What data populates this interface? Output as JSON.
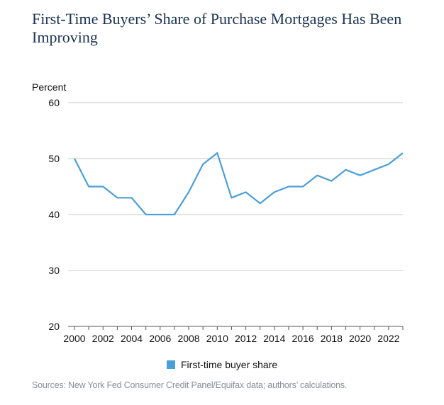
{
  "chart_data": {
    "type": "line",
    "title": "First-Time Buyers’ Share of Purchase Mortgages Has Been Improving",
    "ylabel": "Percent",
    "xlabel": "",
    "ylim": [
      20,
      60
    ],
    "yticks": [
      20,
      30,
      40,
      50,
      60
    ],
    "xlim": [
      2000,
      2023
    ],
    "xticks": [
      "2000",
      "2002",
      "2004",
      "2006",
      "2008",
      "2010",
      "2012",
      "2014",
      "2016",
      "2018",
      "2020",
      "2022"
    ],
    "grid": true,
    "legend_position": "bottom-center",
    "series": [
      {
        "name": "First-time buyer share",
        "color": "#4a9fd8",
        "x": [
          2000,
          2001,
          2002,
          2003,
          2004,
          2005,
          2006,
          2007,
          2008,
          2009,
          2010,
          2011,
          2012,
          2013,
          2014,
          2015,
          2016,
          2017,
          2018,
          2019,
          2020,
          2021,
          2022,
          2023
        ],
        "values": [
          50,
          45,
          45,
          43,
          43,
          40,
          40,
          40,
          44,
          49,
          51,
          43,
          44,
          42,
          44,
          45,
          45,
          47,
          46,
          48,
          47,
          48,
          49,
          51
        ]
      }
    ]
  },
  "footer": {
    "sources": "Sources: New York Fed Consumer Credit Panel/Equifax data; authors’ calculations."
  }
}
